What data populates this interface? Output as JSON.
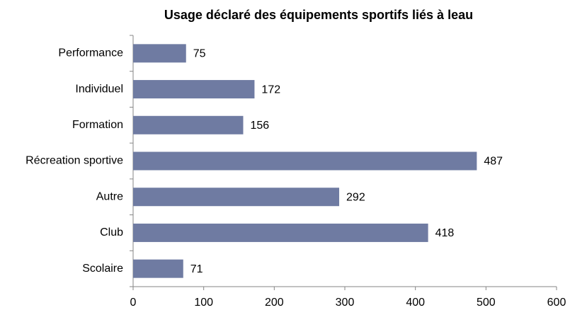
{
  "chart_data": {
    "type": "hbar",
    "title": "Usage déclaré des équipements sportifs liés à leau",
    "categories": [
      "Performance",
      "Individuel",
      "Formation",
      "Récreation sportive",
      "Autre",
      "Club",
      "Scolaire"
    ],
    "values": [
      75,
      172,
      156,
      487,
      292,
      418,
      71
    ],
    "color": "#6f7ba2",
    "xlim": [
      0,
      600
    ],
    "xticks": [
      0,
      100,
      200,
      300,
      400,
      500,
      600
    ],
    "grid": false
  }
}
